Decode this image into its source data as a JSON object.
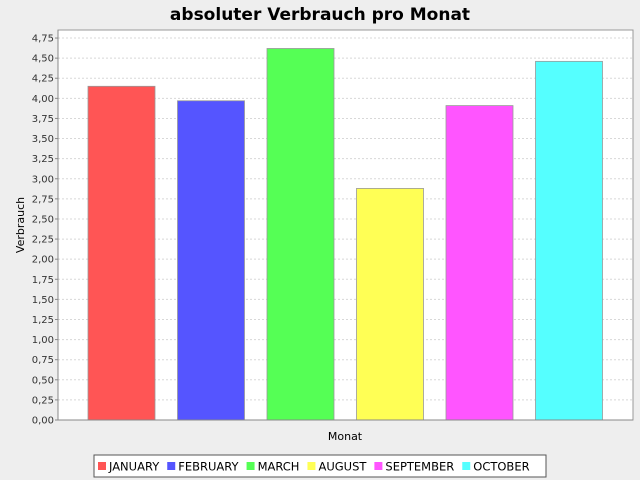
{
  "chart_data": {
    "type": "bar",
    "title": "absoluter Verbrauch pro Monat",
    "xlabel": "Monat",
    "ylabel": "Verbrauch",
    "ylim": [
      0,
      4.85
    ],
    "y_ticks": [
      "0,00",
      "0,25",
      "0,50",
      "0,75",
      "1,00",
      "1,25",
      "1,50",
      "1,75",
      "2,00",
      "2,25",
      "2,50",
      "2,75",
      "3,00",
      "3,25",
      "3,50",
      "3,75",
      "4,00",
      "4,25",
      "4,50",
      "4,75"
    ],
    "grid": true,
    "legend_position": "bottom",
    "series": [
      {
        "name": "JANUARY",
        "value": 4.15,
        "color": "#ff5555"
      },
      {
        "name": "FEBRUARY",
        "value": 3.97,
        "color": "#5555ff"
      },
      {
        "name": "MARCH",
        "value": 4.62,
        "color": "#55ff55"
      },
      {
        "name": "AUGUST",
        "value": 2.88,
        "color": "#ffff55"
      },
      {
        "name": "SEPTEMBER",
        "value": 3.91,
        "color": "#ff55ff"
      },
      {
        "name": "OCTOBER",
        "value": 4.46,
        "color": "#55ffff"
      }
    ]
  }
}
